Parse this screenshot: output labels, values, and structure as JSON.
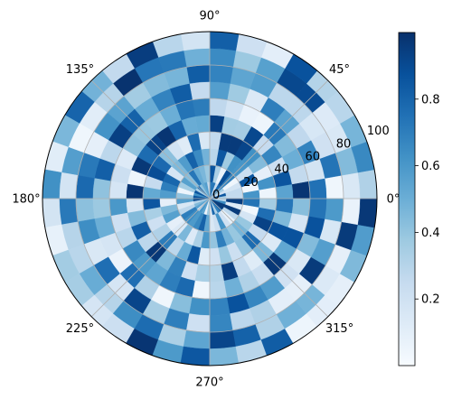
{
  "chart_data": {
    "type": "heatmap",
    "subtype": "polar-heatmap",
    "colormap": "Blues",
    "grid": true,
    "theta_tick_labels": [
      "0°",
      "45°",
      "90°",
      "135°",
      "180°",
      "225°",
      "270°",
      "315°"
    ],
    "r_tick_labels": [
      "0",
      "20",
      "40",
      "60",
      "80",
      "100"
    ],
    "r_lim": [
      0,
      100
    ],
    "r_edges": [
      0,
      10,
      20,
      30,
      40,
      50,
      60,
      70,
      80,
      90,
      100
    ],
    "theta_bins": 36,
    "theta_bin_width_deg": 10,
    "colorbar": {
      "placement": "right",
      "ticks": [
        "0.2",
        "0.4",
        "0.6",
        "0.8"
      ],
      "range": [
        0,
        1
      ]
    },
    "values": [
      [
        0.33,
        0.86,
        0.2,
        0.36,
        0.68,
        0.79,
        0.23,
        0.73,
        0.72,
        0.26,
        0.57,
        0.52,
        0.41,
        0.77,
        0.34,
        0.86,
        0.63,
        0.86,
        0.91,
        0.3,
        0.45,
        0.55,
        0.2,
        0.61,
        0.55,
        0.06,
        0.38,
        0.12,
        0.79,
        0.32,
        0.68,
        0.83,
        0.96,
        0.96,
        0.65,
        0.29
      ],
      [
        0.26,
        0.26,
        0.18,
        0.04,
        0.69,
        0.89,
        0.07,
        0.33,
        0.86,
        0.38,
        0.46,
        0.51,
        0.73,
        0.43,
        0.56,
        0.36,
        0.05,
        0.4,
        0.57,
        0.15,
        0.28,
        0.7,
        0.64,
        0.59,
        0.66,
        0.81,
        0.53,
        0.15,
        0.22,
        0.62,
        0.2,
        0.08,
        0.28,
        0.96,
        0.13,
        0.95
      ],
      [
        0.61,
        0.03,
        0.86,
        0.22,
        0.61,
        0.63,
        0.37,
        0.85,
        0.29,
        0.48,
        0.65,
        0.81,
        0.58,
        0.45,
        0.17,
        0.79,
        0.7,
        0.58,
        0.09,
        0.45,
        0.56,
        0.09,
        0.14,
        0.46,
        0.13,
        0.33,
        0.6,
        0.4,
        0.7,
        0.48,
        0.39,
        0.47,
        0.39,
        0.17,
        0.03,
        0.74
      ],
      [
        0.05,
        0.62,
        0.09,
        0.44,
        0.63,
        0.92,
        0.96,
        0.96,
        0.26,
        0.15,
        0.77,
        0.12,
        0.19,
        0.42,
        0.78,
        0.89,
        0.25,
        0.52,
        0.85,
        0.34,
        0.21,
        0.32,
        0.71,
        0.28,
        0.51,
        0.85,
        0.12,
        0.2,
        0.39,
        0.22,
        0.4,
        0.77,
        0.25,
        0.93,
        0.76,
        0.36
      ],
      [
        0.55,
        0.86,
        0.22,
        0.67,
        0.25,
        0.91,
        0.35,
        0.36,
        0.94,
        0.52,
        0.51,
        0.8,
        0.98,
        0.93,
        0.77,
        0.97,
        0.05,
        0.98,
        0.17,
        0.44,
        0.82,
        0.28,
        0.97,
        0.45,
        0.69,
        0.21,
        0.34,
        0.31,
        0.95,
        0.26,
        0.12,
        0.46,
        0.14,
        0.87,
        0.45,
        0.73
      ],
      [
        0.98,
        0.26,
        0.5,
        0.44,
        0.72,
        0.05,
        0.07,
        0.19,
        0.27,
        0.71,
        0.74,
        0.5,
        0.38,
        0.39,
        0.41,
        0.13,
        0.22,
        0.17,
        0.6,
        0.21,
        0.29,
        0.66,
        0.59,
        0.54,
        0.7,
        0.78,
        0.04,
        0.29,
        0.49,
        0.32,
        0.23,
        0.97,
        0.53,
        0.87,
        0.17,
        0.43
      ],
      [
        0.75,
        0.18,
        0.68,
        0.27,
        0.55,
        0.7,
        0.14,
        0.37,
        0.57,
        0.25,
        0.83,
        0.68,
        0.51,
        0.81,
        0.94,
        0.28,
        0.82,
        0.41,
        0.38,
        0.5,
        0.17,
        0.06,
        0.76,
        0.32,
        0.04,
        0.43,
        0.63,
        0.68,
        0.87,
        0.67,
        0.58,
        0.2,
        0.15,
        0.44,
        0.87,
        0.74
      ],
      [
        0.04,
        0.74,
        0.2,
        0.16,
        0.28,
        0.28,
        0.58,
        0.54,
        0.68,
        0.83,
        0.47,
        0.44,
        0.36,
        0.55,
        0.62,
        0.09,
        0.72,
        0.78,
        0.42,
        0.64,
        0.15,
        0.76,
        0.17,
        0.92,
        0.35,
        0.7,
        0.21,
        0.67,
        0.28,
        0.32,
        0.1,
        0.09,
        0.96,
        0.57,
        0.16,
        0.59
      ],
      [
        0.15,
        0.44,
        0.15,
        0.13,
        0.9,
        0.91,
        0.56,
        0.38,
        0.65,
        0.49,
        0.72,
        0.73,
        0.99,
        0.3,
        0.11,
        0.04,
        0.57,
        0.18,
        0.72,
        0.3,
        0.29,
        0.51,
        0.3,
        0.64,
        0.77,
        0.33,
        0.54,
        0.92,
        0.81,
        0.32,
        0.49,
        0.47,
        0.14,
        0.09,
        0.96,
        0.07
      ],
      [
        0.32,
        0.66,
        0.47,
        0.29,
        0.31,
        0.87,
        0.1,
        0.21,
        0.82,
        0.18,
        0.29,
        0.95,
        0.26,
        0.48,
        0.8,
        0.46,
        0.11,
        0.63,
        0.18,
        0.08,
        0.36,
        0.35,
        0.17,
        0.22,
        0.98,
        0.59,
        0.85,
        0.46,
        0.29,
        0.83,
        0.05,
        0.1,
        0.09,
        0.45,
        0.58,
        0.97
      ]
    ]
  }
}
